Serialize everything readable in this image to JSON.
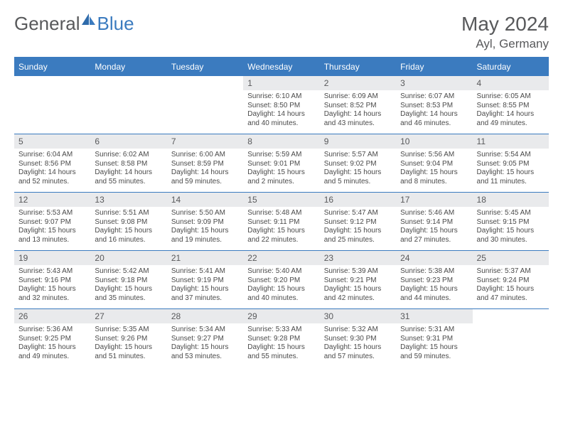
{
  "brand": {
    "part1": "General",
    "part2": "Blue"
  },
  "title": "May 2024",
  "location": "Ayl, Germany",
  "colors": {
    "accent": "#3b7bbf",
    "header_text": "#58595b",
    "daynum_bg": "#e9eaec",
    "body_text": "#4a4a4a"
  },
  "weekdays": [
    "Sunday",
    "Monday",
    "Tuesday",
    "Wednesday",
    "Thursday",
    "Friday",
    "Saturday"
  ],
  "layout": {
    "days_in_month": 31,
    "start_weekday_index": 3
  },
  "days": {
    "1": {
      "sunrise": "6:10 AM",
      "sunset": "8:50 PM",
      "dl_h": 14,
      "dl_m": 40
    },
    "2": {
      "sunrise": "6:09 AM",
      "sunset": "8:52 PM",
      "dl_h": 14,
      "dl_m": 43
    },
    "3": {
      "sunrise": "6:07 AM",
      "sunset": "8:53 PM",
      "dl_h": 14,
      "dl_m": 46
    },
    "4": {
      "sunrise": "6:05 AM",
      "sunset": "8:55 PM",
      "dl_h": 14,
      "dl_m": 49
    },
    "5": {
      "sunrise": "6:04 AM",
      "sunset": "8:56 PM",
      "dl_h": 14,
      "dl_m": 52
    },
    "6": {
      "sunrise": "6:02 AM",
      "sunset": "8:58 PM",
      "dl_h": 14,
      "dl_m": 55
    },
    "7": {
      "sunrise": "6:00 AM",
      "sunset": "8:59 PM",
      "dl_h": 14,
      "dl_m": 59
    },
    "8": {
      "sunrise": "5:59 AM",
      "sunset": "9:01 PM",
      "dl_h": 15,
      "dl_m": 2
    },
    "9": {
      "sunrise": "5:57 AM",
      "sunset": "9:02 PM",
      "dl_h": 15,
      "dl_m": 5
    },
    "10": {
      "sunrise": "5:56 AM",
      "sunset": "9:04 PM",
      "dl_h": 15,
      "dl_m": 8
    },
    "11": {
      "sunrise": "5:54 AM",
      "sunset": "9:05 PM",
      "dl_h": 15,
      "dl_m": 11
    },
    "12": {
      "sunrise": "5:53 AM",
      "sunset": "9:07 PM",
      "dl_h": 15,
      "dl_m": 13
    },
    "13": {
      "sunrise": "5:51 AM",
      "sunset": "9:08 PM",
      "dl_h": 15,
      "dl_m": 16
    },
    "14": {
      "sunrise": "5:50 AM",
      "sunset": "9:09 PM",
      "dl_h": 15,
      "dl_m": 19
    },
    "15": {
      "sunrise": "5:48 AM",
      "sunset": "9:11 PM",
      "dl_h": 15,
      "dl_m": 22
    },
    "16": {
      "sunrise": "5:47 AM",
      "sunset": "9:12 PM",
      "dl_h": 15,
      "dl_m": 25
    },
    "17": {
      "sunrise": "5:46 AM",
      "sunset": "9:14 PM",
      "dl_h": 15,
      "dl_m": 27
    },
    "18": {
      "sunrise": "5:45 AM",
      "sunset": "9:15 PM",
      "dl_h": 15,
      "dl_m": 30
    },
    "19": {
      "sunrise": "5:43 AM",
      "sunset": "9:16 PM",
      "dl_h": 15,
      "dl_m": 32
    },
    "20": {
      "sunrise": "5:42 AM",
      "sunset": "9:18 PM",
      "dl_h": 15,
      "dl_m": 35
    },
    "21": {
      "sunrise": "5:41 AM",
      "sunset": "9:19 PM",
      "dl_h": 15,
      "dl_m": 37
    },
    "22": {
      "sunrise": "5:40 AM",
      "sunset": "9:20 PM",
      "dl_h": 15,
      "dl_m": 40
    },
    "23": {
      "sunrise": "5:39 AM",
      "sunset": "9:21 PM",
      "dl_h": 15,
      "dl_m": 42
    },
    "24": {
      "sunrise": "5:38 AM",
      "sunset": "9:23 PM",
      "dl_h": 15,
      "dl_m": 44
    },
    "25": {
      "sunrise": "5:37 AM",
      "sunset": "9:24 PM",
      "dl_h": 15,
      "dl_m": 47
    },
    "26": {
      "sunrise": "5:36 AM",
      "sunset": "9:25 PM",
      "dl_h": 15,
      "dl_m": 49
    },
    "27": {
      "sunrise": "5:35 AM",
      "sunset": "9:26 PM",
      "dl_h": 15,
      "dl_m": 51
    },
    "28": {
      "sunrise": "5:34 AM",
      "sunset": "9:27 PM",
      "dl_h": 15,
      "dl_m": 53
    },
    "29": {
      "sunrise": "5:33 AM",
      "sunset": "9:28 PM",
      "dl_h": 15,
      "dl_m": 55
    },
    "30": {
      "sunrise": "5:32 AM",
      "sunset": "9:30 PM",
      "dl_h": 15,
      "dl_m": 57
    },
    "31": {
      "sunrise": "5:31 AM",
      "sunset": "9:31 PM",
      "dl_h": 15,
      "dl_m": 59
    }
  }
}
